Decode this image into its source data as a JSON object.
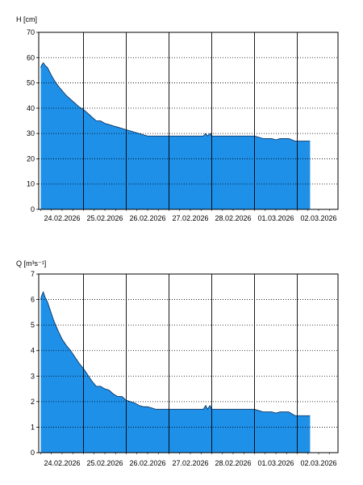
{
  "chart_data": [
    {
      "type": "area",
      "ylabel": "H [cm]",
      "ylim": [
        0,
        70
      ],
      "yticks": [
        0,
        10,
        20,
        30,
        40,
        50,
        60,
        70
      ],
      "xlabels": [
        "24.02.2026",
        "25.02.2026",
        "26.02.2026",
        "27.02.2026",
        "28.02.2026",
        "01.03.2026",
        "02.03.2026"
      ],
      "grid": true,
      "fill_color": "#1E90E8",
      "series": [
        {
          "x": [
            0.0,
            0.02,
            0.06,
            0.1,
            0.16,
            0.22,
            0.3,
            0.4,
            0.5,
            0.6,
            0.7,
            0.8,
            0.9,
            1.0,
            1.1,
            1.2,
            1.3,
            1.4,
            1.5,
            1.6,
            1.7,
            1.8,
            1.9,
            2.0,
            2.1,
            2.2,
            2.3,
            2.4,
            2.5,
            2.6,
            2.7,
            2.8,
            2.9,
            3.0,
            3.1,
            3.3,
            3.5,
            3.8,
            3.86,
            3.9,
            3.96,
            4.0,
            4.2,
            4.6,
            5.0,
            5.2,
            5.4,
            5.5,
            5.6,
            5.8,
            5.95,
            6.0,
            6.15,
            6.3
          ],
          "y": [
            56,
            57,
            58,
            57,
            56,
            54,
            51.5,
            49,
            47,
            45,
            43.5,
            42,
            40.5,
            39.5,
            38,
            36.5,
            35,
            35,
            34,
            33.5,
            33,
            32.5,
            32,
            31.5,
            31,
            30.5,
            30,
            29.5,
            29,
            29,
            29,
            29,
            29,
            29,
            29,
            29,
            29,
            29,
            30,
            29,
            30,
            29,
            29,
            29,
            29,
            28,
            28,
            27.5,
            28,
            28,
            27,
            27,
            27,
            27
          ]
        }
      ]
    },
    {
      "type": "area",
      "ylabel": "Q [m³s⁻¹]",
      "ylim": [
        0,
        7
      ],
      "yticks": [
        0,
        1,
        2,
        3,
        4,
        5,
        6,
        7
      ],
      "xlabels": [
        "24.02.2026",
        "25.02.2026",
        "26.02.2026",
        "27.02.2026",
        "28.02.2026",
        "01.03.2026",
        "02.03.2026"
      ],
      "grid": true,
      "fill_color": "#1E90E8",
      "series": [
        {
          "x": [
            0.0,
            0.02,
            0.06,
            0.1,
            0.16,
            0.22,
            0.3,
            0.4,
            0.5,
            0.6,
            0.7,
            0.8,
            0.9,
            1.0,
            1.1,
            1.2,
            1.3,
            1.4,
            1.5,
            1.6,
            1.7,
            1.8,
            1.9,
            2.0,
            2.1,
            2.2,
            2.3,
            2.4,
            2.5,
            2.6,
            2.7,
            2.8,
            2.9,
            3.0,
            3.1,
            3.3,
            3.5,
            3.8,
            3.86,
            3.9,
            3.96,
            4.0,
            4.2,
            4.6,
            5.0,
            5.2,
            5.4,
            5.5,
            5.6,
            5.8,
            5.95,
            6.0,
            6.15,
            6.3
          ],
          "y": [
            6.0,
            6.15,
            6.3,
            6.1,
            5.9,
            5.6,
            5.2,
            4.8,
            4.45,
            4.2,
            4.0,
            3.75,
            3.5,
            3.3,
            3.05,
            2.8,
            2.6,
            2.6,
            2.5,
            2.45,
            2.3,
            2.2,
            2.2,
            2.05,
            2.0,
            1.95,
            1.85,
            1.8,
            1.8,
            1.75,
            1.7,
            1.7,
            1.7,
            1.7,
            1.7,
            1.7,
            1.7,
            1.7,
            1.85,
            1.7,
            1.85,
            1.7,
            1.7,
            1.7,
            1.7,
            1.6,
            1.6,
            1.55,
            1.6,
            1.6,
            1.45,
            1.45,
            1.45,
            1.45
          ]
        }
      ]
    }
  ]
}
